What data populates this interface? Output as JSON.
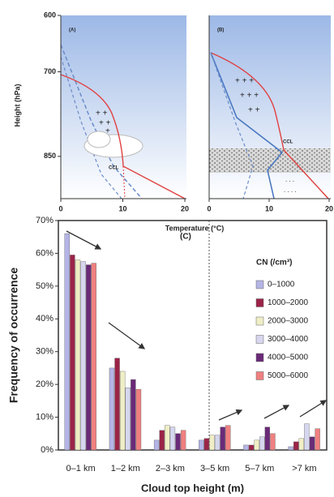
{
  "chart_data": [
    {
      "type": "sounding",
      "label": "(A)",
      "annotation": "CCL",
      "ylabel": "Height (hPa)",
      "xlabel": "Temperature (°C)",
      "xlim": [
        0,
        20
      ],
      "xticks": [
        0,
        10,
        20
      ],
      "ylim": [
        600,
        925
      ],
      "yticks": [
        600,
        700,
        850
      ],
      "y_reversed": true
    },
    {
      "type": "sounding",
      "label": "(B)",
      "annotation": "CCL",
      "xlim": [
        0,
        20
      ],
      "xticks": [
        0,
        10,
        20
      ],
      "ylim": [
        600,
        925
      ],
      "y_reversed": true
    },
    {
      "type": "bar",
      "label": "(C)",
      "xlabel": "Cloud top height (m)",
      "ylabel": "Frequency of occurrence",
      "legend_title": "CN (/cm³)",
      "legend": "right",
      "categories": [
        "0–1 km",
        "1–2 km",
        "2–3 km",
        "3–5 km",
        "5–7 km",
        ">7 km"
      ],
      "ylim": [
        0,
        70
      ],
      "yticks": [
        {
          "value": 0,
          "label": "0%"
        },
        {
          "value": 10,
          "label": "10%"
        },
        {
          "value": 20,
          "label": "20%"
        },
        {
          "value": 30,
          "label": "30%"
        },
        {
          "value": 40,
          "label": "40%"
        },
        {
          "value": 50,
          "label": "50%"
        },
        {
          "value": 60,
          "label": "60%"
        },
        {
          "value": 70,
          "label": "70%"
        }
      ],
      "series": [
        {
          "name": "0–1000",
          "color": "#b4b4e6",
          "values": [
            66,
            25,
            3,
            3,
            1.5,
            1
          ]
        },
        {
          "name": "1000–2000",
          "color": "#9b2348",
          "values": [
            59.5,
            28,
            6,
            3.5,
            1.5,
            2.5
          ]
        },
        {
          "name": "2000–3000",
          "color": "#efeec6",
          "values": [
            58,
            24,
            7.5,
            4.5,
            3,
            3.5
          ]
        },
        {
          "name": "3000–4000",
          "color": "#d6d6ef",
          "values": [
            57.5,
            19,
            7,
            4.5,
            4,
            8
          ]
        },
        {
          "name": "4000–5000",
          "color": "#6a2a78",
          "values": [
            56.5,
            21.5,
            5,
            7,
            7,
            4
          ]
        },
        {
          "name": "5000–6000",
          "color": "#f08080",
          "values": [
            57,
            18.5,
            6,
            7.5,
            5,
            6.5
          ]
        }
      ]
    }
  ]
}
